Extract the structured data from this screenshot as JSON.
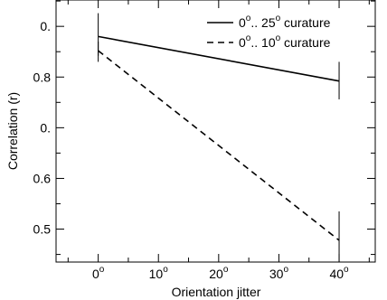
{
  "chart_data": {
    "type": "line",
    "xlabel": "Orientation jitter",
    "ylabel": "Correlation (r)",
    "xlim": [
      -7,
      46
    ],
    "ylim": [
      0.435,
      0.952
    ],
    "grid": false,
    "legend_position": "top-right",
    "x_ticks": [
      {
        "value": 0,
        "label": "0",
        "sup": "o"
      },
      {
        "value": 10,
        "label": "10",
        "sup": "o"
      },
      {
        "value": 20,
        "label": "20",
        "sup": "o"
      },
      {
        "value": 30,
        "label": "30",
        "sup": "o"
      },
      {
        "value": 40,
        "label": "40",
        "sup": "o"
      }
    ],
    "y_ticks": [
      {
        "value": 0.5,
        "label": "0.5"
      },
      {
        "value": 0.6,
        "label": "0.6"
      },
      {
        "value": 0.7,
        "label": "0."
      },
      {
        "value": 0.8,
        "label": "0.8"
      },
      {
        "value": 0.9,
        "label": "0."
      }
    ],
    "series": [
      {
        "legend_parts": [
          "0",
          "o",
          ".. 25",
          "o",
          " curature"
        ],
        "dash": "solid",
        "color": "#000000",
        "x": [
          0,
          40
        ],
        "y": [
          0.88,
          0.792
        ],
        "error_bars": [
          [
            0.842,
            0.926
          ],
          [
            0.756,
            0.83
          ]
        ]
      },
      {
        "legend_parts": [
          "0",
          "o",
          ".. 10",
          "o",
          " curature"
        ],
        "dash": "dashed",
        "color": "#000000",
        "x": [
          0,
          40
        ],
        "y": [
          0.852,
          0.478
        ],
        "error_bars": [
          [
            0.83,
            0.87
          ],
          [
            0.435,
            0.535
          ]
        ]
      }
    ]
  }
}
